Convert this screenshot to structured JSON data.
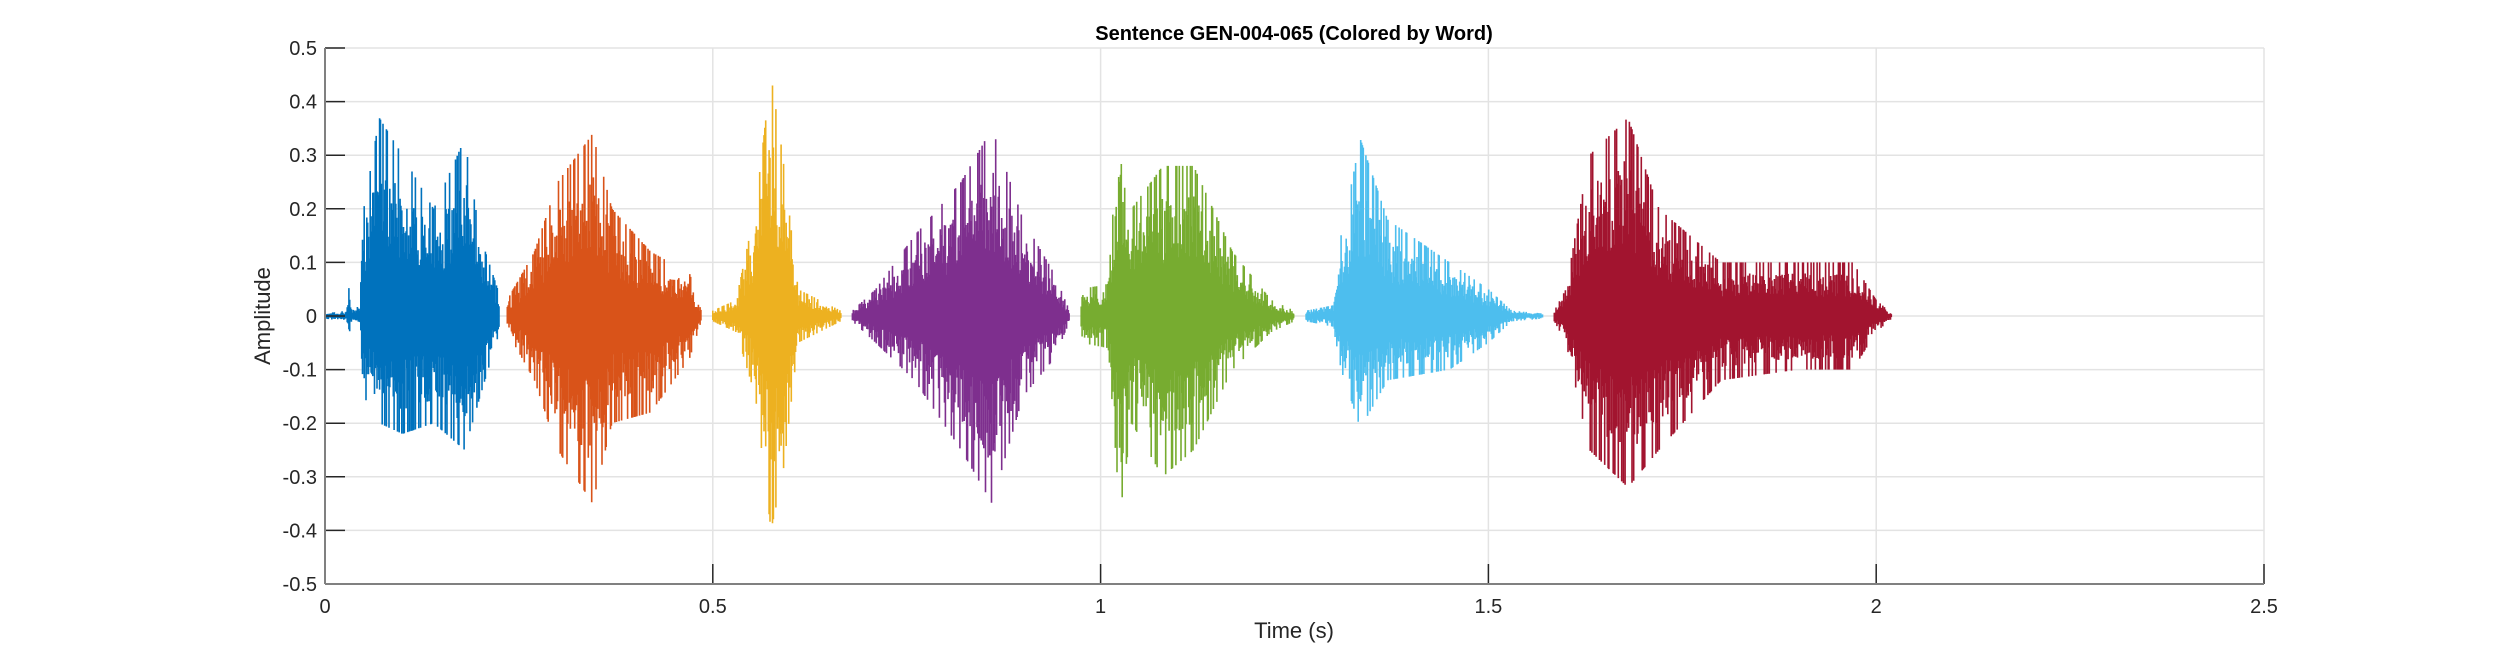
{
  "chart_data": {
    "type": "line",
    "title": "Sentence GEN-004-065 (Colored by Word)",
    "xlabel": "Time (s)",
    "ylabel": "Amplitude",
    "xlim": [
      0,
      2.5
    ],
    "ylim": [
      -0.5,
      0.5
    ],
    "xticks": [
      "0",
      "0.5",
      "1",
      "1.5",
      "2",
      "2.5"
    ],
    "xtick_values": [
      0,
      0.5,
      1,
      1.5,
      2,
      2.5
    ],
    "yticks": [
      "0.5",
      "0.4",
      "0.3",
      "0.2",
      "0.1",
      "0",
      "-0.1",
      "-0.2",
      "-0.3",
      "-0.4",
      "-0.5"
    ],
    "ytick_values": [
      0.5,
      0.4,
      0.3,
      0.2,
      0.1,
      0,
      -0.1,
      -0.2,
      -0.3,
      -0.4,
      -0.5
    ],
    "grid": true,
    "legend": "none",
    "words": [
      {
        "color": "#0072BD",
        "start": 0.0,
        "end": 0.225,
        "peak_pos": 0.37,
        "peak_neg": -0.25,
        "envelope": [
          [
            0.0,
            0.005,
            0.005
          ],
          [
            0.028,
            0.01,
            0.01
          ],
          [
            0.03,
            0.06,
            0.04
          ],
          [
            0.035,
            0.01,
            0.01
          ],
          [
            0.045,
            0.02,
            0.02
          ],
          [
            0.05,
            0.2,
            0.15
          ],
          [
            0.07,
            0.37,
            0.2
          ],
          [
            0.1,
            0.3,
            0.22
          ],
          [
            0.14,
            0.2,
            0.2
          ],
          [
            0.18,
            0.33,
            0.25
          ],
          [
            0.2,
            0.15,
            0.15
          ],
          [
            0.225,
            0.04,
            0.03
          ]
        ]
      },
      {
        "color": "#D95319",
        "start": 0.235,
        "end": 0.485,
        "peak_pos": 0.34,
        "peak_neg": -0.35,
        "envelope": [
          [
            0.235,
            0.03,
            0.03
          ],
          [
            0.27,
            0.12,
            0.12
          ],
          [
            0.3,
            0.25,
            0.25
          ],
          [
            0.345,
            0.34,
            0.35
          ],
          [
            0.37,
            0.2,
            0.2
          ],
          [
            0.42,
            0.12,
            0.18
          ],
          [
            0.47,
            0.08,
            0.08
          ],
          [
            0.485,
            0.01,
            0.01
          ]
        ]
      },
      {
        "color": "#EDB120",
        "start": 0.5,
        "end": 0.665,
        "peak_pos": 0.45,
        "peak_neg": -0.4,
        "envelope": [
          [
            0.5,
            0.01,
            0.01
          ],
          [
            0.53,
            0.03,
            0.03
          ],
          [
            0.555,
            0.2,
            0.15
          ],
          [
            0.575,
            0.45,
            0.4
          ],
          [
            0.59,
            0.3,
            0.3
          ],
          [
            0.61,
            0.05,
            0.05
          ],
          [
            0.665,
            0.01,
            0.01
          ]
        ]
      },
      {
        "color": "#7E2F8E",
        "start": 0.68,
        "end": 0.96,
        "peak_pos": 0.35,
        "peak_neg": -0.35,
        "envelope": [
          [
            0.68,
            0.01,
            0.01
          ],
          [
            0.71,
            0.05,
            0.05
          ],
          [
            0.76,
            0.15,
            0.12
          ],
          [
            0.82,
            0.25,
            0.25
          ],
          [
            0.86,
            0.35,
            0.35
          ],
          [
            0.9,
            0.18,
            0.15
          ],
          [
            0.94,
            0.08,
            0.08
          ],
          [
            0.96,
            0.01,
            0.01
          ]
        ]
      },
      {
        "color": "#77AC30",
        "start": 0.975,
        "end": 1.25,
        "peak_pos": 0.4,
        "peak_neg": -0.37,
        "envelope": [
          [
            0.975,
            0.05,
            0.05
          ],
          [
            1.01,
            0.06,
            0.06
          ],
          [
            1.025,
            0.4,
            0.37
          ],
          [
            1.04,
            0.2,
            0.2
          ],
          [
            1.08,
            0.28,
            0.3
          ],
          [
            1.12,
            0.28,
            0.25
          ],
          [
            1.17,
            0.12,
            0.1
          ],
          [
            1.22,
            0.03,
            0.03
          ],
          [
            1.25,
            0.01,
            0.01
          ]
        ]
      },
      {
        "color": "#4DBEEE",
        "start": 1.265,
        "end": 1.57,
        "peak_pos": 0.33,
        "peak_neg": -0.21,
        "envelope": [
          [
            1.265,
            0.01,
            0.01
          ],
          [
            1.3,
            0.02,
            0.02
          ],
          [
            1.31,
            0.15,
            0.1
          ],
          [
            1.335,
            0.33,
            0.21
          ],
          [
            1.37,
            0.18,
            0.12
          ],
          [
            1.45,
            0.1,
            0.1
          ],
          [
            1.5,
            0.05,
            0.05
          ],
          [
            1.53,
            0.01,
            0.01
          ],
          [
            1.57,
            0.005,
            0.005
          ]
        ]
      },
      {
        "color": "#A2142F",
        "start": 1.585,
        "end": 2.02,
        "peak_pos": 0.37,
        "peak_neg": -0.32,
        "envelope": [
          [
            1.585,
            0.01,
            0.01
          ],
          [
            1.6,
            0.05,
            0.05
          ],
          [
            1.63,
            0.3,
            0.25
          ],
          [
            1.68,
            0.37,
            0.32
          ],
          [
            1.72,
            0.2,
            0.25
          ],
          [
            1.8,
            0.1,
            0.12
          ],
          [
            1.9,
            0.1,
            0.1
          ],
          [
            1.97,
            0.1,
            0.1
          ],
          [
            2.0,
            0.03,
            0.03
          ],
          [
            2.02,
            0.005,
            0.005
          ]
        ]
      }
    ]
  }
}
